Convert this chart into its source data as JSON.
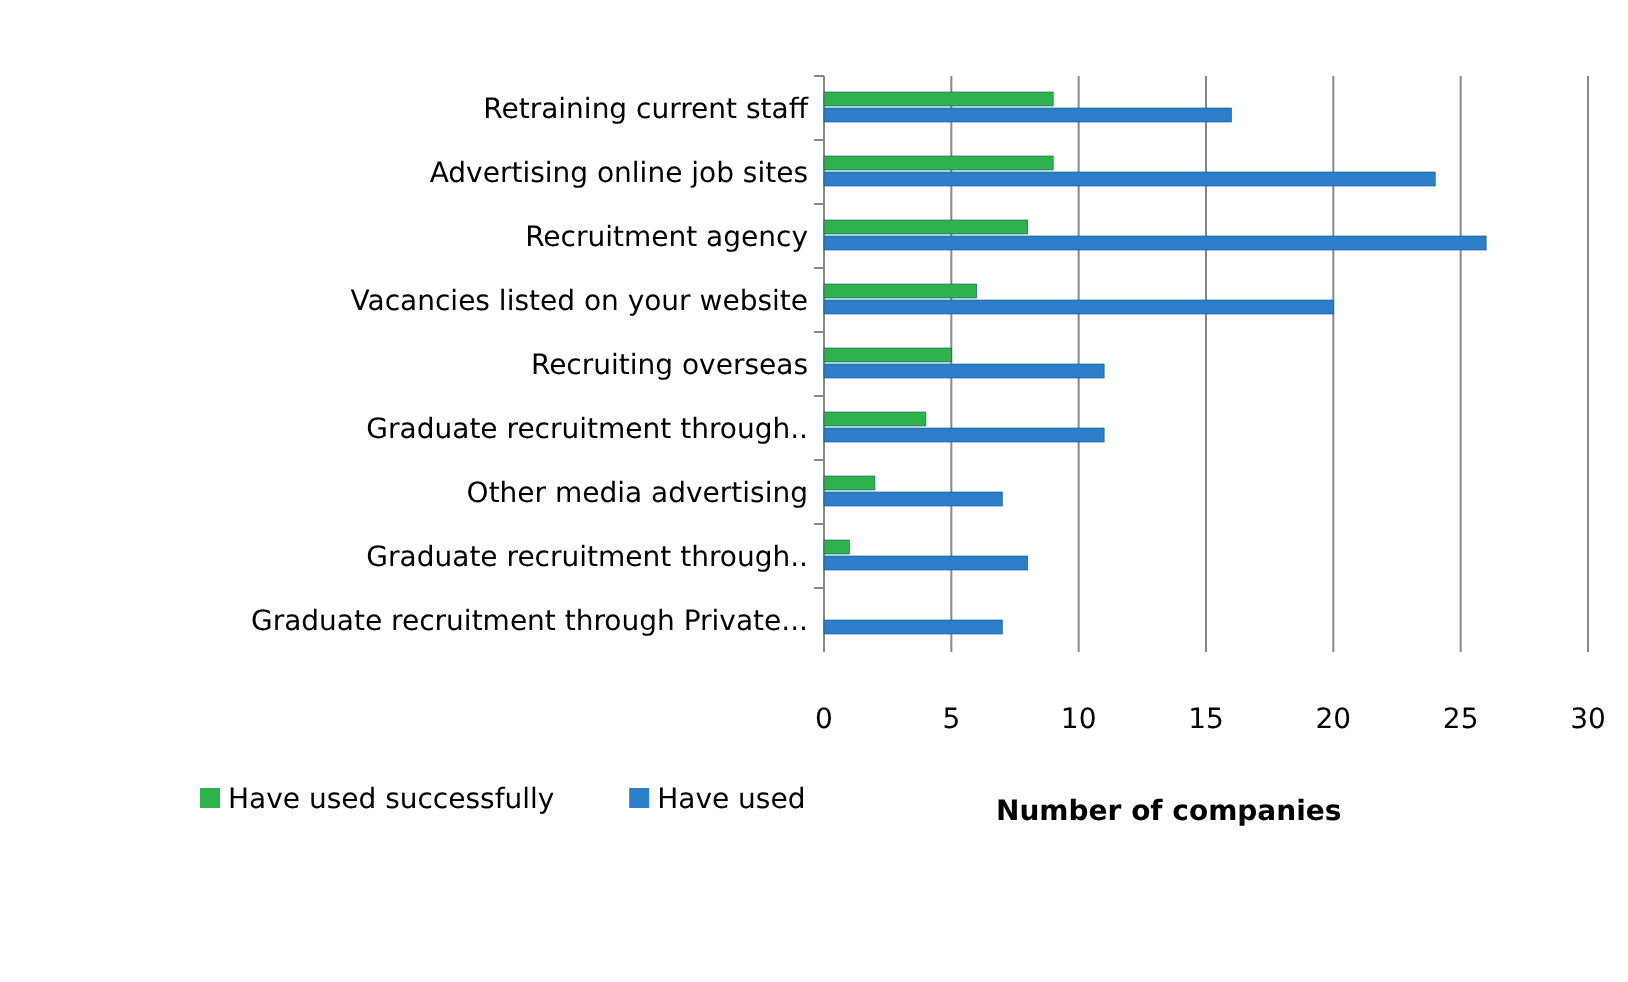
{
  "chart_data": {
    "type": "bar",
    "orientation": "horizontal",
    "xlabel": "Number of companies",
    "categories": [
      "Retraining current staff",
      "Advertising online job sites",
      "Recruitment agency",
      "Vacancies listed on your website",
      "Recruiting overseas",
      "Graduate recruitment through..",
      "Other media advertising",
      "Graduate recruitment through..",
      "Graduate recruitment through Private..."
    ],
    "series": [
      {
        "name": "Have used successfully",
        "color": "#2db34a",
        "values": [
          9,
          9,
          8,
          6,
          5,
          4,
          2,
          1,
          0
        ]
      },
      {
        "name": "Have used",
        "color": "#2a7fc8",
        "values": [
          16,
          24,
          26,
          20,
          11,
          11,
          7,
          8,
          7
        ]
      }
    ],
    "xlim": [
      0,
      30
    ],
    "xticks": [
      0,
      5,
      10,
      15,
      20,
      25,
      30
    ],
    "grid": "x",
    "legend": "bottom"
  }
}
